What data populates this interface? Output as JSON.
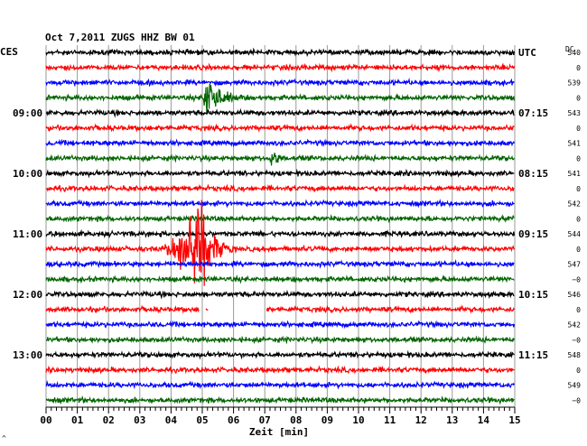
{
  "chart_data": {
    "type": "line",
    "title": "Oct 7,2011   ZUGS HHZ BW 01",
    "left_timezone": "CES",
    "right_timezone": "UTC",
    "dc_header": "DC",
    "xlabel": "Zeit [min]",
    "x_ticks": [
      "00",
      "01",
      "02",
      "03",
      "04",
      "05",
      "06",
      "07",
      "08",
      "09",
      "10",
      "11",
      "12",
      "13",
      "14",
      "15"
    ],
    "xlim": [
      0,
      15
    ],
    "grid": true,
    "trace_colors": [
      "#000000",
      "#ff0000",
      "#0000ff",
      "#006400"
    ],
    "left_hour_labels": [
      {
        "trace": 4,
        "label": "09:00"
      },
      {
        "trace": 8,
        "label": "10:00"
      },
      {
        "trace": 12,
        "label": "11:00"
      },
      {
        "trace": 16,
        "label": "12:00"
      },
      {
        "trace": 20,
        "label": "13:00"
      }
    ],
    "right_hour_labels": [
      {
        "trace": 0,
        "label": "UTC"
      },
      {
        "trace": 4,
        "label": "07:15"
      },
      {
        "trace": 8,
        "label": "08:15"
      },
      {
        "trace": 12,
        "label": "09:15"
      },
      {
        "trace": 16,
        "label": "10:15"
      },
      {
        "trace": 20,
        "label": "11:15"
      }
    ],
    "dc_values": [
      "540",
      "0",
      "539",
      "0",
      "543",
      "0",
      "541",
      "0",
      "541",
      "0",
      "542",
      "0",
      "544",
      "0",
      "547",
      "−0",
      "546",
      "0",
      "542",
      "−0",
      "548",
      "0",
      "549",
      "−0"
    ],
    "events": [
      {
        "trace": 3,
        "start_min": 5.0,
        "peak_min": 5.1,
        "end_min": 7.0,
        "amplitude": 1.2
      },
      {
        "trace": 7,
        "start_min": 7.1,
        "peak_min": 7.2,
        "end_min": 7.5,
        "amplitude": 0.35
      },
      {
        "trace": 13,
        "start_min": 3.5,
        "peak_min": 4.9,
        "end_min": 6.0,
        "amplitude": 2.2
      }
    ],
    "gaps": [
      {
        "trace": 17,
        "start_min": 4.9,
        "end_min": 5.1
      },
      {
        "trace": 17,
        "start_min": 5.2,
        "end_min": 7.05
      }
    ],
    "footer_mark": "^"
  }
}
